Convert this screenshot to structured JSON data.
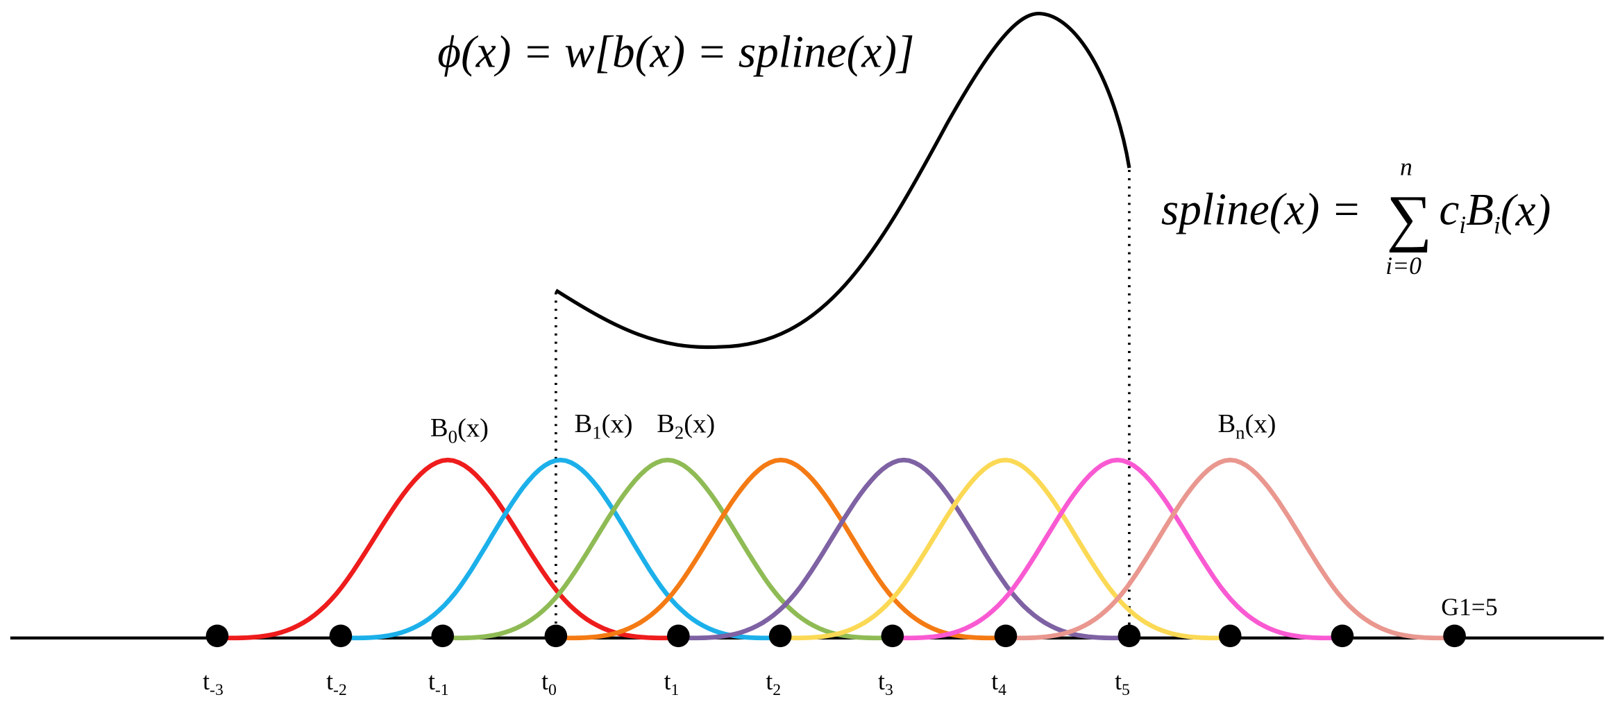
{
  "formulas": {
    "phi": "ϕ(x) = w[b(x) = spline(x)]",
    "spline": {
      "lhs": "spline(x) =",
      "sum": "∑",
      "upper": "n",
      "lower": "i=0",
      "coef": "c",
      "coef_sub": "i",
      "basis": "B",
      "basis_sub": "i",
      "arg": "(x)"
    }
  },
  "basis_labels": [
    {
      "base": "B",
      "sub": "0",
      "arg": "(x)"
    },
    {
      "base": "B",
      "sub": "1",
      "arg": "(x)"
    },
    {
      "base": "B",
      "sub": "2",
      "arg": "(x)"
    },
    {
      "base": "B",
      "sub": "n",
      "arg": "(x)"
    }
  ],
  "knot_labels": [
    {
      "base": "t",
      "sub": "-3"
    },
    {
      "base": "t",
      "sub": "-2"
    },
    {
      "base": "t",
      "sub": "-1"
    },
    {
      "base": "t",
      "sub": "0"
    },
    {
      "base": "t",
      "sub": "1"
    },
    {
      "base": "t",
      "sub": "2"
    },
    {
      "base": "t",
      "sub": "3"
    },
    {
      "base": "t",
      "sub": "4"
    },
    {
      "base": "t",
      "sub": "5"
    }
  ],
  "grid_note": "G1=5"
}
